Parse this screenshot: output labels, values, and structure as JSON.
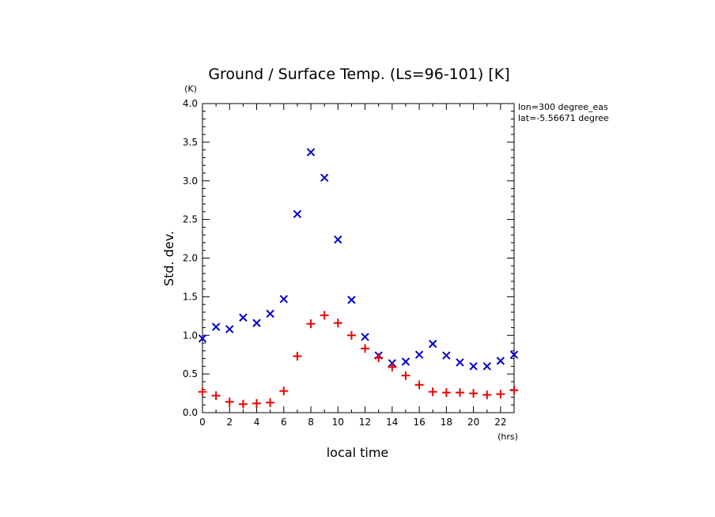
{
  "chart_data": {
    "type": "scatter",
    "title": "Ground / Surface Temp. (Ls=96-101) [K]",
    "xlabel": "local time",
    "ylabel": "Std. dev.",
    "x_unit": "(hrs)",
    "y_unit": "(K)",
    "xlim": [
      0,
      23
    ],
    "ylim": [
      0,
      4.0
    ],
    "x_ticks": [
      "0",
      "2",
      "4",
      "6",
      "8",
      "10",
      "12",
      "14",
      "16",
      "18",
      "20",
      "22"
    ],
    "y_ticks": [
      "0.0",
      "0.5",
      "1.0",
      "1.5",
      "2.0",
      "2.5",
      "3.0",
      "3.5",
      "4.0"
    ],
    "annotations": [
      "lon=300 degree_eas",
      "lat=-5.56671 degree"
    ],
    "series": [
      {
        "marker": "x",
        "color": "#0000cc",
        "x": [
          0,
          1,
          2,
          3,
          4,
          5,
          6,
          7,
          8,
          9,
          10,
          11,
          12,
          13,
          14,
          15,
          16,
          17,
          18,
          19,
          20,
          21,
          22,
          23
        ],
        "values": [
          0.96,
          1.11,
          1.08,
          1.23,
          1.16,
          1.28,
          1.47,
          2.57,
          3.37,
          3.04,
          2.24,
          1.46,
          0.98,
          0.74,
          0.64,
          0.66,
          0.75,
          0.89,
          0.74,
          0.65,
          0.6,
          0.6,
          0.67,
          0.75
        ]
      },
      {
        "marker": "+",
        "color": "#ee0000",
        "x": [
          0,
          1,
          2,
          3,
          4,
          5,
          6,
          7,
          8,
          9,
          10,
          11,
          12,
          13,
          14,
          15,
          16,
          17,
          18,
          19,
          20,
          21,
          22,
          23
        ],
        "values": [
          0.27,
          0.22,
          0.14,
          0.11,
          0.12,
          0.13,
          0.28,
          0.73,
          1.15,
          1.26,
          1.16,
          1.0,
          0.83,
          0.71,
          0.59,
          0.48,
          0.36,
          0.27,
          0.26,
          0.26,
          0.25,
          0.23,
          0.24,
          0.29
        ]
      }
    ]
  }
}
